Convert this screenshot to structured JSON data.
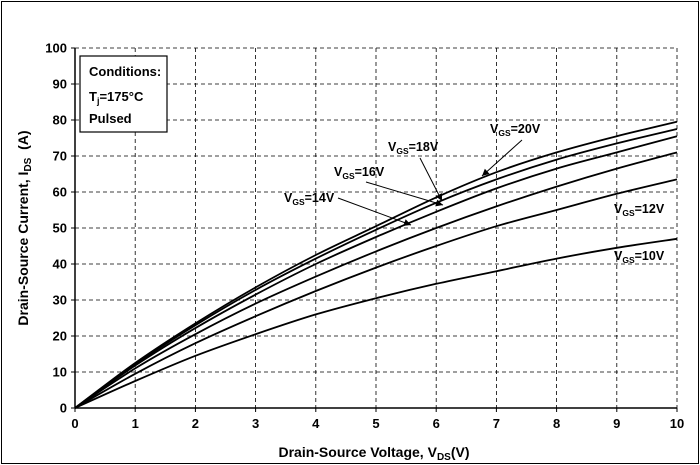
{
  "chart_data": {
    "type": "line",
    "xlabel": {
      "main": "Drain-Source Voltage, V",
      "sub": "DS",
      "suffix": "(V)"
    },
    "ylabel": {
      "main": "Drain-Source Current, I",
      "sub": "DS",
      "suffix": "  (A)"
    },
    "xlim": [
      0,
      10
    ],
    "ylim": [
      0,
      100
    ],
    "xticks": [
      "0",
      "1",
      "2",
      "3",
      "4",
      "5",
      "6",
      "7",
      "8",
      "9",
      "10"
    ],
    "yticks": [
      "0",
      "10",
      "20",
      "30",
      "40",
      "50",
      "60",
      "70",
      "80",
      "90",
      "100"
    ],
    "grid": "dashed",
    "conditions": {
      "title": "Conditions:",
      "temp_main": "T",
      "temp_sub": "j",
      "temp_value": "=175°C",
      "mode": "Pulsed"
    },
    "series": [
      {
        "name": "V_GS=20V",
        "label_main": "V",
        "label_sub": "GS",
        "label_suffix": "=20V",
        "x": [
          0,
          1,
          2,
          3,
          4,
          5,
          6,
          7,
          8,
          9,
          10
        ],
        "y": [
          0,
          12.5,
          23.5,
          33.5,
          42.5,
          50.5,
          58.5,
          65.5,
          71.0,
          75.5,
          79.5
        ]
      },
      {
        "name": "V_GS=18V",
        "label_main": "V",
        "label_sub": "GS",
        "label_suffix": "=18V",
        "x": [
          0,
          1,
          2,
          3,
          4,
          5,
          6,
          7,
          8,
          9,
          10
        ],
        "y": [
          0,
          12.2,
          23.0,
          32.8,
          41.5,
          49.5,
          57.0,
          63.5,
          69.0,
          73.5,
          77.5
        ]
      },
      {
        "name": "V_GS=16V",
        "label_main": "V",
        "label_sub": "GS",
        "label_suffix": "=16V",
        "x": [
          0,
          1,
          2,
          3,
          4,
          5,
          6,
          7,
          8,
          9,
          10
        ],
        "y": [
          0,
          11.8,
          22.2,
          31.5,
          40.0,
          47.5,
          54.5,
          61.0,
          66.5,
          71.0,
          75.5
        ]
      },
      {
        "name": "V_GS=14V",
        "label_main": "V",
        "label_sub": "GS",
        "label_suffix": "=14V",
        "x": [
          0,
          1,
          2,
          3,
          4,
          5,
          6,
          7,
          8,
          9,
          10
        ],
        "y": [
          0,
          11.0,
          20.5,
          29.0,
          36.5,
          43.5,
          50.0,
          56.0,
          61.5,
          66.5,
          71.0
        ]
      },
      {
        "name": "V_GS=12V",
        "label_main": "V",
        "label_sub": "GS",
        "label_suffix": "=12V",
        "x": [
          0,
          1,
          2,
          3,
          4,
          5,
          6,
          7,
          8,
          9,
          10
        ],
        "y": [
          0,
          9.5,
          18.0,
          25.5,
          32.5,
          39.0,
          45.0,
          50.5,
          55.0,
          59.5,
          63.5
        ]
      },
      {
        "name": "V_GS=10V",
        "label_main": "V",
        "label_sub": "GS",
        "label_suffix": "=10V",
        "x": [
          0,
          1,
          2,
          3,
          4,
          5,
          6,
          7,
          8,
          9,
          10
        ],
        "y": [
          0,
          7.5,
          14.5,
          20.5,
          26.0,
          30.5,
          34.5,
          38.0,
          41.5,
          44.5,
          47.0
        ]
      }
    ]
  }
}
